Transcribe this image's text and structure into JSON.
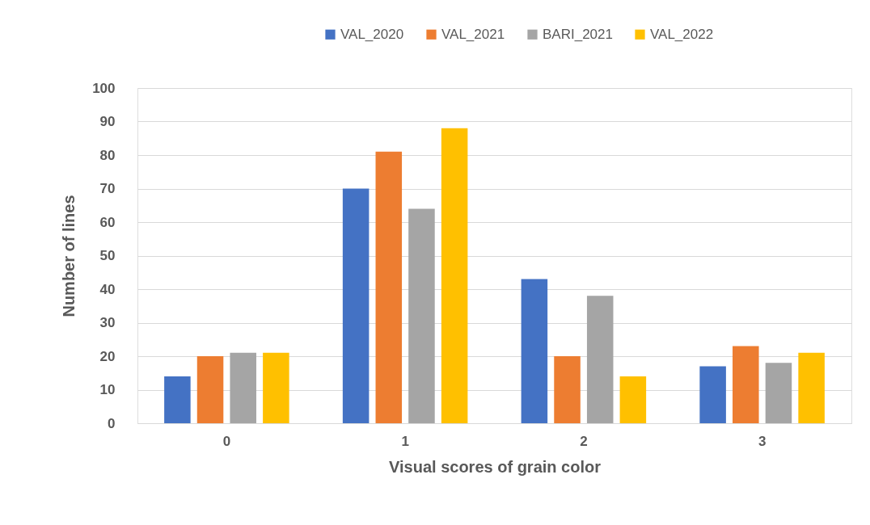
{
  "chart_data": {
    "type": "bar",
    "xlabel": "Visual scores of grain color",
    "ylabel": "Number of lines",
    "categories": [
      "0",
      "1",
      "2",
      "3"
    ],
    "series": [
      {
        "name": "VAL_2020",
        "color": "#4472c4",
        "values": [
          14,
          70,
          43,
          17
        ]
      },
      {
        "name": "VAL_2021",
        "color": "#ed7d31",
        "values": [
          20,
          81,
          20,
          23
        ]
      },
      {
        "name": "BARI_2021",
        "color": "#a5a5a5",
        "values": [
          21,
          64,
          38,
          18
        ]
      },
      {
        "name": "VAL_2022",
        "color": "#ffc000",
        "values": [
          21,
          88,
          14,
          21
        ]
      }
    ],
    "ylim": [
      0,
      100
    ],
    "yticks": [
      0,
      10,
      20,
      30,
      40,
      50,
      60,
      70,
      80,
      90,
      100
    ],
    "grid": "y",
    "legend": "top"
  }
}
